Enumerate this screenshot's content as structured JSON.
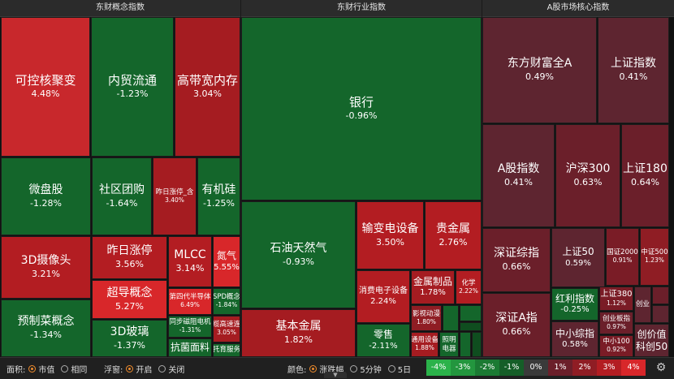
{
  "panels": {
    "concept": {
      "title": "东财概念指数"
    },
    "industry": {
      "title": "东财行业指数"
    },
    "market": {
      "title": "A股市场核心指数"
    }
  },
  "concept_tiles": [
    {
      "name": "可控核聚变",
      "value": "4.48%"
    },
    {
      "name": "内贸流通",
      "value": "-1.23%"
    },
    {
      "name": "高带宽内存",
      "value": "3.04%"
    },
    {
      "name": "微盘股",
      "value": "-1.28%"
    },
    {
      "name": "社区团购",
      "value": "-1.64%"
    },
    {
      "name": "昨日涨停_含",
      "value": "3.40%"
    },
    {
      "name": "有机硅",
      "value": "-1.25%"
    },
    {
      "name": "3D摄像头",
      "value": "3.21%"
    },
    {
      "name": "昨日涨停",
      "value": "3.56%"
    },
    {
      "name": "MLCC",
      "value": "3.14%"
    },
    {
      "name": "氮气",
      "value": "5.55%"
    },
    {
      "name": "超导概念",
      "value": "5.27%"
    },
    {
      "name": "第四代半导体",
      "value": "6.49%"
    },
    {
      "name": "SPD概念",
      "value": "-1.84%"
    },
    {
      "name": "预制菜概念",
      "value": "-1.34%"
    },
    {
      "name": "3D玻璃",
      "value": "-1.37%"
    },
    {
      "name": "同步磁阻电机",
      "value": "-1.31%"
    },
    {
      "name": "铜缆高速连接",
      "value": "3.05%"
    },
    {
      "name": "抗菌面料",
      "value": ""
    },
    {
      "name": "托育服务",
      "value": ""
    }
  ],
  "industry_tiles": [
    {
      "name": "银行",
      "value": "-0.96%"
    },
    {
      "name": "石油天然气",
      "value": "-0.93%"
    },
    {
      "name": "输变电设备",
      "value": "3.50%"
    },
    {
      "name": "贵金属",
      "value": "2.76%"
    },
    {
      "name": "消费电子设备",
      "value": "2.24%"
    },
    {
      "name": "金属制品",
      "value": "1.78%"
    },
    {
      "name": "化学",
      "value": "2.22%"
    },
    {
      "name": "影视动漫",
      "value": "1.80%"
    },
    {
      "name": "基本金属",
      "value": "1.82%"
    },
    {
      "name": "零售",
      "value": "-2.11%"
    },
    {
      "name": "通用设备",
      "value": "1.88%"
    },
    {
      "name": "照明",
      "value": ""
    },
    {
      "name": "电器",
      "value": ""
    }
  ],
  "market_tiles": [
    {
      "name": "东方财富全A",
      "value": "0.49%"
    },
    {
      "name": "上证指数",
      "value": "0.41%"
    },
    {
      "name": "A股指数",
      "value": "0.41%"
    },
    {
      "name": "沪深300",
      "value": "0.63%"
    },
    {
      "name": "上证180",
      "value": "0.64%"
    },
    {
      "name": "深证综指",
      "value": "0.66%"
    },
    {
      "name": "上证50",
      "value": "0.59%"
    },
    {
      "name": "国证2000",
      "value": "0.91%"
    },
    {
      "name": "中证500",
      "value": "1.23%"
    },
    {
      "name": "深证A指",
      "value": "0.66%"
    },
    {
      "name": "红利指数",
      "value": "-0.25%"
    },
    {
      "name": "上证380",
      "value": "1.12%"
    },
    {
      "name": "创业",
      "value": ""
    },
    {
      "name": "创业板指",
      "value": "0.97%"
    },
    {
      "name": "中小综指",
      "value": "0.58%"
    },
    {
      "name": "中小100",
      "value": "0.92%"
    },
    {
      "name": "创价值",
      "value": ""
    },
    {
      "name": "科创50",
      "value": ""
    }
  ],
  "bottom_bar": {
    "area_label": "面积:",
    "area_options": [
      "市值",
      "相同"
    ],
    "float_label": "浮窗:",
    "float_options": [
      "开启",
      "关闭"
    ],
    "color_label": "颜色:",
    "color_options": [
      "涨跌幅",
      "5分钟",
      "5日"
    ],
    "legend": [
      "-4%",
      "-3%",
      "-2%",
      "-1%",
      "0%",
      "1%",
      "2%",
      "3%",
      "4%"
    ],
    "legend_colors": [
      "#2bb24a",
      "#23963e",
      "#1b7a33",
      "#155e28",
      "#3a3a3a",
      "#6b1f2a",
      "#8f1d24",
      "#b31d22",
      "#d8272a"
    ],
    "settings_icon": "gear-icon"
  },
  "colors": {
    "up_strong": "#d8272a",
    "up": "#b31d22",
    "down": "#1b6b2e",
    "down_dark": "#0f4d1f",
    "flat": "#5e2530"
  }
}
